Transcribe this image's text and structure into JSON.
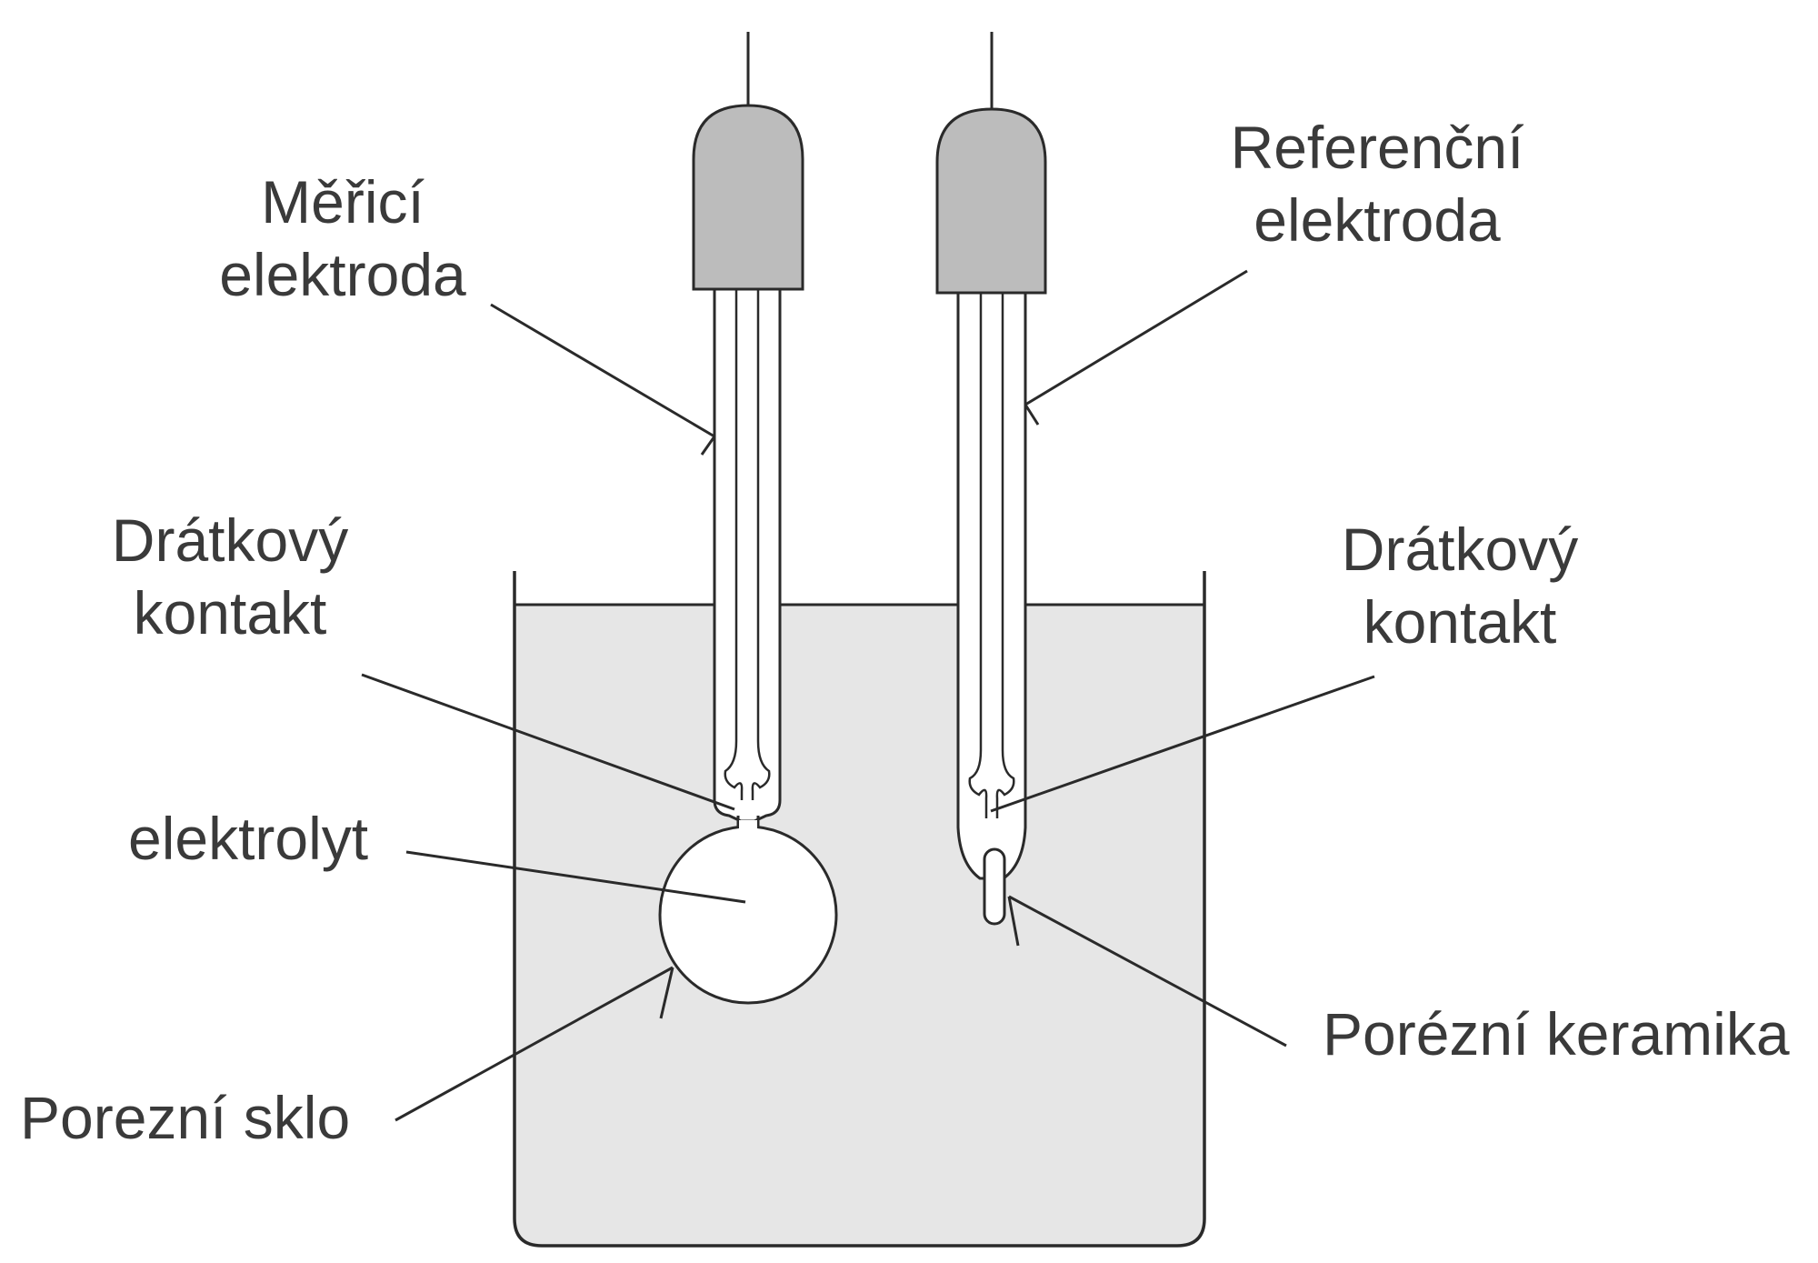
{
  "labels": {
    "measuring_electrode": [
      "Měřicí",
      "elektroda"
    ],
    "reference_electrode": [
      "Referenční",
      "elektroda"
    ],
    "wire_contact_left": [
      "Drátkový",
      "kontakt"
    ],
    "wire_contact_right": [
      "Drátkový",
      "kontakt"
    ],
    "electrolyte": "elektrolyt",
    "porous_glass": "Porezní sklo",
    "porous_ceramic": "Porézní keramika"
  },
  "colors": {
    "solution": "#e6e6e6",
    "electrode_cap": "#bcbcbc",
    "line": "#2a2a2a",
    "text": "#3a3a3a",
    "background": "#ffffff"
  }
}
